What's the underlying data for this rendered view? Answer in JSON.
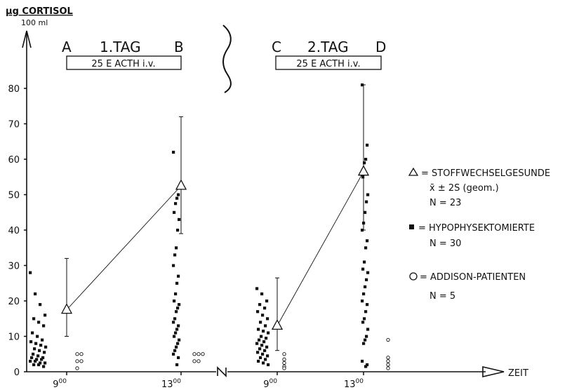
{
  "chart_data": {
    "type": "scatter",
    "ylabel_top": "μg CORTISOL",
    "ylabel_bottom": "100 ml",
    "xlabel": "ZEIT",
    "ylim": [
      0,
      85
    ],
    "yticks": [
      0,
      10,
      20,
      30,
      40,
      50,
      60,
      70,
      80
    ],
    "day1": {
      "title": "1.TAG",
      "start_marker": "A",
      "end_marker": "B",
      "box_label": "25 E ACTH i.v."
    },
    "day2": {
      "title": "2.TAG",
      "start_marker": "C",
      "end_marker": "D",
      "box_label": "25 E ACTH i.v."
    },
    "xticks": [
      {
        "hour": "9",
        "minutes": "00"
      },
      {
        "hour": "13",
        "minutes": "00"
      },
      {
        "hour": "9",
        "minutes": "00"
      },
      {
        "hour": "13",
        "minutes": "00"
      }
    ],
    "legend": [
      {
        "symbol": "triangle",
        "lines": [
          "= STOFFWECHSELGESUNDE",
          "x̄ ± 2S (geom.)",
          "N = 23"
        ]
      },
      {
        "symbol": "square",
        "lines": [
          "= HYPOPHYSEKTOMIERTE",
          "N = 30"
        ]
      },
      {
        "symbol": "circle",
        "lines": [
          "= ADDISON-PATIENTEN",
          "N = 5"
        ]
      }
    ],
    "series": [
      {
        "symbol": "triangle",
        "points": [
          {
            "slot": 0,
            "mean": 17.5,
            "lower": 10,
            "upper": 32
          },
          {
            "slot": 1,
            "mean": 52.5,
            "lower": 39,
            "upper": 72
          },
          {
            "slot": 2,
            "mean": 13,
            "lower": 6,
            "upper": 26.5
          },
          {
            "slot": 3,
            "mean": 56.5,
            "lower": 40,
            "upper": 81
          }
        ]
      },
      {
        "symbol": "square",
        "groups": [
          {
            "slot": 0,
            "values": [
              28,
              22,
              19,
              16,
              15,
              14,
              13,
              11,
              10,
              9,
              8.5,
              8,
              7.5,
              7,
              6.5,
              6,
              5.5,
              5,
              4.5,
              4,
              4,
              3.5,
              3.5,
              3,
              3,
              2.5,
              2.5,
              2,
              2,
              1.5
            ]
          },
          {
            "slot": 1,
            "values": [
              62,
              50,
              49,
              47.5,
              45,
              43,
              40,
              35,
              33,
              30,
              27,
              25,
              22,
              20,
              19,
              18,
              17,
              15,
              14,
              13,
              12,
              11,
              10,
              9,
              8,
              7,
              6,
              5,
              4,
              2
            ]
          },
          {
            "slot": 2,
            "values": [
              23.5,
              22,
              20,
              19,
              18,
              17,
              16,
              15,
              14,
              13,
              12,
              11.5,
              11,
              10,
              9.5,
              9,
              8.5,
              8,
              7.5,
              7,
              6.5,
              6,
              5.5,
              5,
              4.5,
              4,
              3.5,
              3,
              2.5,
              2
            ]
          },
          {
            "slot": 3,
            "values": [
              81,
              64,
              60,
              59,
              55,
              50,
              48,
              45,
              42,
              40,
              37,
              35,
              31,
              29,
              28,
              26,
              24,
              22,
              20,
              19,
              17,
              15,
              14,
              12,
              10,
              9,
              8,
              3,
              2,
              1.5
            ]
          }
        ]
      },
      {
        "symbol": "circle",
        "groups": [
          {
            "slot": 0,
            "values": [
              5,
              5,
              3,
              3,
              1
            ]
          },
          {
            "slot": 1,
            "values": [
              5,
              5,
              5,
              3,
              3
            ]
          },
          {
            "slot": 2,
            "values": [
              5,
              3.5,
              2.5,
              1.5,
              1
            ]
          },
          {
            "slot": 3,
            "values": [
              9,
              4,
              3,
              2,
              1
            ]
          }
        ]
      }
    ]
  }
}
